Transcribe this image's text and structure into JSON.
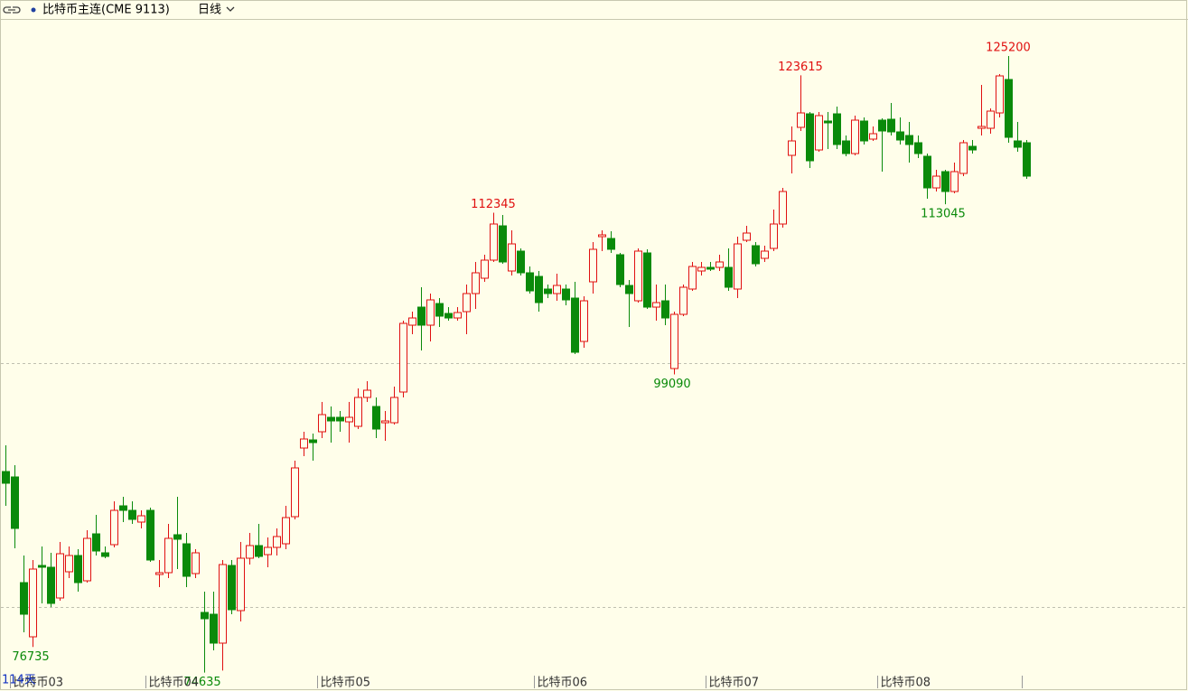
{
  "chart_data": {
    "type": "candlestick",
    "title": "比特币主连(CME 9113)",
    "period": "日线",
    "day_count": "114天",
    "categories": [
      null,
      "比特币03",
      null,
      null,
      null,
      null,
      null,
      null,
      null,
      null,
      null,
      null,
      null,
      null,
      null,
      null,
      "比特币04",
      null,
      null,
      null,
      null,
      null,
      null,
      null,
      null,
      null,
      null,
      null,
      null,
      null,
      null,
      null,
      null,
      null,
      null,
      "比特币05",
      null,
      null,
      null,
      null,
      null,
      null,
      null,
      null,
      null,
      null,
      null,
      null,
      null,
      null,
      null,
      null,
      null,
      null,
      null,
      null,
      null,
      null,
      null,
      "比特币06",
      null,
      null,
      null,
      null,
      null,
      null,
      null,
      null,
      null,
      null,
      null,
      null,
      null,
      null,
      null,
      null,
      null,
      null,
      "比特币07",
      null,
      null,
      null,
      null,
      null,
      null,
      null,
      null,
      null,
      null,
      null,
      null,
      null,
      null,
      null,
      null,
      null,
      null,
      "比特币08",
      null,
      null,
      null,
      null,
      null,
      null,
      null,
      null,
      null,
      null,
      null,
      null,
      null,
      null,
      null,
      null
    ],
    "open": [
      91127,
      90683,
      82017,
      77573,
      83424,
      83276,
      80758,
      82906,
      84239,
      82165,
      86017,
      84461,
      85128,
      88313,
      87942,
      86980,
      87942,
      82683,
      82832,
      85943,
      85202,
      82758,
      79573,
      79424,
      77054,
      83424,
      79721,
      84017,
      85054,
      84313,
      84906,
      85202,
      87424,
      93053,
      93720,
      94387,
      95572,
      95572,
      95201,
      94831,
      97201,
      96460,
      95127,
      95127,
      97646,
      103127,
      104608,
      103127,
      104904,
      104090,
      103719,
      104238,
      105719,
      106978,
      108460,
      111274,
      107571,
      109201,
      107423,
      107127,
      106090,
      105719,
      106090,
      105349,
      101794,
      106682,
      110386,
      110238,
      108904,
      106386,
      105127,
      109052,
      104608,
      105127,
      99571,
      104016,
      106090,
      107571,
      107867,
      107867,
      107867,
      106090,
      110089,
      109645,
      108608,
      109423,
      111423,
      117052,
      119348,
      120459,
      117496,
      119867,
      120459,
      118237,
      117200,
      119867,
      118385,
      119941,
      120015,
      118978,
      118681,
      118089,
      116978,
      114385,
      115719,
      114089,
      115571,
      117793,
      119274,
      119274,
      120533,
      123274,
      118237,
      118089
    ],
    "high": [
      93275,
      91646,
      84239,
      83869,
      84980,
      84461,
      85350,
      84980,
      84757,
      86313,
      87572,
      84980,
      88683,
      89053,
      88683,
      87942,
      88165,
      83869,
      86831,
      89053,
      86091,
      84757,
      81276,
      81276,
      83869,
      83869,
      85350,
      86091,
      86831,
      85720,
      86461,
      88313,
      92016,
      94387,
      94238,
      96831,
      96460,
      96090,
      96831,
      97942,
      98534,
      97201,
      96090,
      98090,
      103497,
      104238,
      106238,
      105719,
      105349,
      104608,
      104608,
      106460,
      108312,
      108904,
      112345,
      112163,
      110904,
      109423,
      107941,
      107571,
      106460,
      107349,
      106460,
      106682,
      105497,
      109941,
      110904,
      110830,
      109052,
      106830,
      109423,
      109349,
      106460,
      106460,
      104238,
      106460,
      108312,
      108312,
      108312,
      108904,
      109423,
      110386,
      111274,
      109941,
      109645,
      112608,
      114385,
      119422,
      123615,
      120607,
      120607,
      120607,
      121052,
      118681,
      120311,
      120163,
      119422,
      120089,
      121348,
      120163,
      119793,
      118681,
      117200,
      115867,
      115867,
      116459,
      118311,
      118311,
      122829,
      120904,
      123718,
      125200,
      119793,
      118311
    ],
    "low": [
      88313,
      84832,
      77943,
      76735,
      80313,
      80017,
      80535,
      82387,
      81276,
      82017,
      84239,
      84017,
      84906,
      86980,
      86831,
      86461,
      83720,
      81646,
      82387,
      83128,
      81646,
      82387,
      74635,
      76462,
      74800,
      79424,
      78832,
      83498,
      84017,
      83276,
      84239,
      84757,
      87202,
      92387,
      92016,
      93868,
      93498,
      94387,
      93498,
      94609,
      96831,
      93868,
      93646,
      94979,
      97201,
      102386,
      101053,
      101794,
      102979,
      103497,
      103497,
      102386,
      104460,
      106682,
      108312,
      108164,
      107201,
      107201,
      105719,
      104238,
      105349,
      105127,
      104756,
      100757,
      101275,
      105719,
      109201,
      109052,
      106238,
      102979,
      104979,
      104460,
      103497,
      103127,
      99090,
      103867,
      105941,
      107201,
      107571,
      107571,
      105941,
      105349,
      109941,
      107941,
      108312,
      109201,
      111126,
      115571,
      119052,
      116015,
      117348,
      117570,
      117570,
      116978,
      117052,
      117941,
      118237,
      115719,
      118681,
      117941,
      116459,
      116830,
      113497,
      114089,
      113045,
      113941,
      115348,
      117200,
      118681,
      118830,
      120163,
      118089,
      117348,
      115126
    ],
    "close": [
      90165,
      86461,
      79424,
      83128,
      83276,
      80313,
      84387,
      84239,
      82017,
      85646,
      84609,
      84165,
      87942,
      87942,
      87202,
      87498,
      83869,
      82832,
      85646,
      85572,
      82535,
      84461,
      79054,
      77054,
      83498,
      79795,
      84017,
      85054,
      84165,
      84906,
      85794,
      87350,
      91424,
      93794,
      93498,
      95794,
      95275,
      95275,
      95572,
      97201,
      97794,
      94609,
      95275,
      97201,
      103275,
      103719,
      103127,
      105201,
      103867,
      103719,
      104164,
      105719,
      107423,
      108460,
      111423,
      108312,
      109793,
      107423,
      105941,
      104979,
      105719,
      106386,
      105201,
      100905,
      105127,
      109349,
      110534,
      109349,
      106460,
      105719,
      109201,
      104608,
      104979,
      103719,
      104016,
      106238,
      107941,
      107867,
      107719,
      108312,
      106238,
      109793,
      110682,
      108164,
      109201,
      111423,
      114089,
      118237,
      120533,
      116608,
      120311,
      119718,
      117941,
      117200,
      119941,
      118237,
      118830,
      119052,
      118978,
      118311,
      117941,
      117200,
      114385,
      115348,
      114089,
      115719,
      118089,
      117496,
      119422,
      120681,
      123570,
      118533,
      117719,
      115348
    ],
    "ylim": [
      74536,
      128163
    ],
    "ygrid": [
      80000,
      100000
    ],
    "up_color": "#e01010",
    "down_color": "#0a8a0a"
  }
}
